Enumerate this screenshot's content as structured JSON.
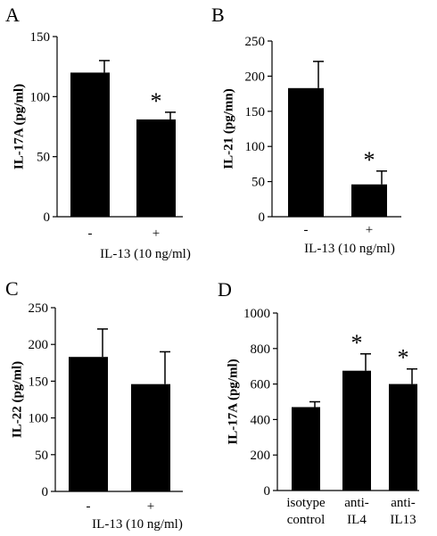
{
  "chart_data": [
    {
      "panel": "A",
      "type": "bar",
      "categories": [
        "-",
        "+"
      ],
      "values": [
        120,
        81
      ],
      "errors": [
        10,
        6
      ],
      "significance": [
        "",
        "*"
      ],
      "ylabel": "IL-17A (pg/ml)",
      "xlabel": "IL-13 (10 ng/ml)",
      "ylim": [
        0,
        150
      ],
      "yticks": [
        0,
        50,
        100,
        150
      ]
    },
    {
      "panel": "B",
      "type": "bar",
      "categories": [
        "-",
        "+"
      ],
      "values": [
        183,
        46
      ],
      "errors": [
        38,
        19
      ],
      "significance": [
        "",
        "*"
      ],
      "ylabel": "IL-21 (pg/mn)",
      "xlabel": "IL-13 (10 ng/ml)",
      "ylim": [
        0,
        250
      ],
      "yticks": [
        0,
        50,
        100,
        150,
        200,
        250
      ]
    },
    {
      "panel": "C",
      "type": "bar",
      "categories": [
        "-",
        "+"
      ],
      "values": [
        183,
        146
      ],
      "errors": [
        38,
        44
      ],
      "significance": [
        "",
        ""
      ],
      "ylabel": "IL-22 (pg/ml)",
      "xlabel": "IL-13 (10 ng/ml)",
      "ylim": [
        0,
        250
      ],
      "yticks": [
        0,
        50,
        100,
        150,
        200,
        250
      ]
    },
    {
      "panel": "D",
      "type": "bar",
      "categories": [
        [
          "isotype",
          "control"
        ],
        [
          "anti-",
          "IL4"
        ],
        [
          "anti-",
          "IL13"
        ]
      ],
      "values": [
        470,
        675,
        600
      ],
      "errors": [
        30,
        95,
        85
      ],
      "significance": [
        "",
        "*",
        "*"
      ],
      "ylabel": "IL-17A (pg/ml)",
      "xlabel": "",
      "ylim": [
        0,
        1000
      ],
      "yticks": [
        0,
        200,
        400,
        600,
        800,
        1000
      ]
    }
  ]
}
